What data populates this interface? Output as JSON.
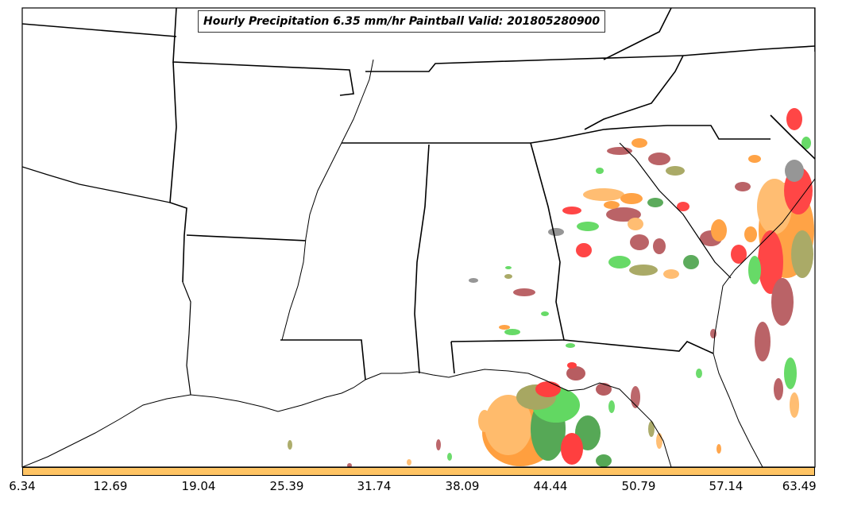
{
  "title": "Hourly Precipitation 6.35 mm/hr Paintball Valid: 201805280900",
  "colorbar": {
    "color": "#ffc464",
    "ticks": [
      "6.34",
      "12.69",
      "19.04",
      "25.39",
      "31.74",
      "38.09",
      "44.44",
      "50.79",
      "57.14",
      "63.49"
    ]
  },
  "colors": {
    "ensemble_members": [
      "#ff0000",
      "#ff8000",
      "#ffa53c",
      "#2ecc2e",
      "#1e8c1e",
      "#8a8a2e",
      "#a0282d",
      "#6e6e6e"
    ]
  }
}
